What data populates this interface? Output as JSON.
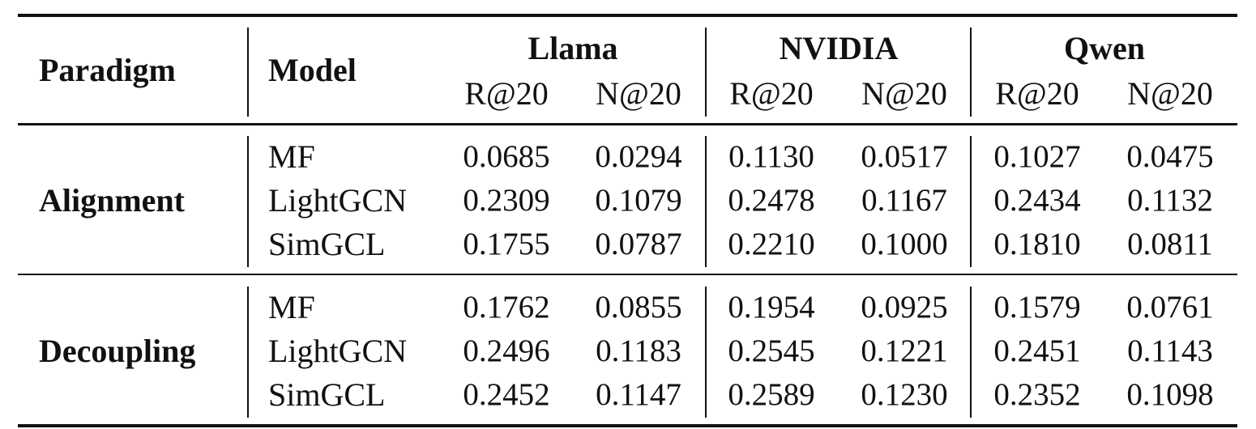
{
  "table": {
    "header": {
      "paradigm": "Paradigm",
      "model": "Model",
      "groups": [
        "Llama",
        "NVIDIA",
        "Qwen"
      ],
      "metrics": [
        "R@20",
        "N@20",
        "R@20",
        "N@20",
        "R@20",
        "N@20"
      ]
    },
    "sections": [
      {
        "paradigm": "Alignment",
        "rows": [
          {
            "model": "MF",
            "values": [
              "0.0685",
              "0.0294",
              "0.1130",
              "0.0517",
              "0.1027",
              "0.0475"
            ]
          },
          {
            "model": "LightGCN",
            "values": [
              "0.2309",
              "0.1079",
              "0.2478",
              "0.1167",
              "0.2434",
              "0.1132"
            ]
          },
          {
            "model": "SimGCL",
            "values": [
              "0.1755",
              "0.0787",
              "0.2210",
              "0.1000",
              "0.1810",
              "0.0811"
            ]
          }
        ]
      },
      {
        "paradigm": "Decoupling",
        "rows": [
          {
            "model": "MF",
            "values": [
              "0.1762",
              "0.0855",
              "0.1954",
              "0.0925",
              "0.1579",
              "0.0761"
            ]
          },
          {
            "model": "LightGCN",
            "values": [
              "0.2496",
              "0.1183",
              "0.2545",
              "0.1221",
              "0.2451",
              "0.1143"
            ]
          },
          {
            "model": "SimGCL",
            "values": [
              "0.2452",
              "0.1147",
              "0.2589",
              "0.1230",
              "0.2352",
              "0.1098"
            ]
          }
        ]
      }
    ]
  }
}
